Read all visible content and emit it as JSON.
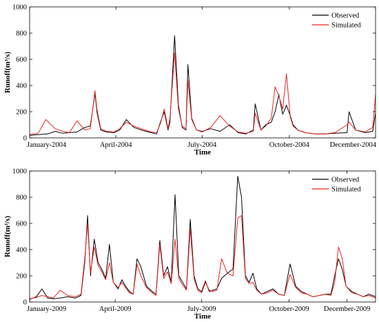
{
  "figure": {
    "panels": [
      {
        "xlabel": "Time",
        "ylabel": "Runoff(m³/s)",
        "legend": [
          "Observed",
          "Simulated"
        ]
      },
      {
        "xlabel": "Time",
        "ylabel": "Runoff(m³/s)",
        "legend": [
          "Observed",
          "Simulated"
        ]
      }
    ]
  },
  "chart_data": [
    {
      "type": "line",
      "title": "",
      "xlabel": "Time",
      "ylabel": "Runoff(m³/s)",
      "ylim": [
        0,
        1000
      ],
      "yticks": [
        0,
        200,
        400,
        600,
        800,
        1000
      ],
      "xlim": [
        "2004-01-01",
        "2004-12-31"
      ],
      "xticks": [
        {
          "date": "2004-01-01",
          "label": "January-2004"
        },
        {
          "date": "2004-04-01",
          "label": "April-2004"
        },
        {
          "date": "2004-07-01",
          "label": "July-2004"
        },
        {
          "date": "2004-10-01",
          "label": "October-2004"
        },
        {
          "date": "2004-12-31",
          "label": "December-2004"
        }
      ],
      "legend_position": "top-right",
      "grid": false,
      "colors": {
        "Observed": "#000000",
        "Simulated": "#e8231f"
      },
      "series": [
        {
          "name": "Observed",
          "x": [
            "2004-01-01",
            "2004-01-10",
            "2004-01-20",
            "2004-01-28",
            "2004-02-05",
            "2004-02-12",
            "2004-02-20",
            "2004-02-28",
            "2004-03-05",
            "2004-03-10",
            "2004-03-12",
            "2004-03-16",
            "2004-03-22",
            "2004-03-30",
            "2004-04-05",
            "2004-04-12",
            "2004-04-20",
            "2004-04-28",
            "2004-05-08",
            "2004-05-14",
            "2004-05-18",
            "2004-05-22",
            "2004-05-26",
            "2004-05-28",
            "2004-06-02",
            "2004-06-06",
            "2004-06-10",
            "2004-06-14",
            "2004-06-16",
            "2004-06-20",
            "2004-06-25",
            "2004-07-01",
            "2004-07-10",
            "2004-07-20",
            "2004-07-30",
            "2004-08-08",
            "2004-08-16",
            "2004-08-24",
            "2004-08-26",
            "2004-09-01",
            "2004-09-06",
            "2004-09-12",
            "2004-09-16",
            "2004-09-20",
            "2004-09-24",
            "2004-09-28",
            "2004-10-02",
            "2004-10-05",
            "2004-10-10",
            "2004-10-18",
            "2004-10-28",
            "2004-11-08",
            "2004-11-18",
            "2004-12-01",
            "2004-12-03",
            "2004-12-10",
            "2004-12-20",
            "2004-12-28",
            "2004-12-31"
          ],
          "values": [
            20,
            25,
            30,
            50,
            35,
            40,
            45,
            80,
            90,
            340,
            200,
            60,
            45,
            40,
            60,
            140,
            80,
            60,
            40,
            30,
            120,
            200,
            60,
            120,
            780,
            250,
            80,
            60,
            560,
            150,
            60,
            50,
            70,
            50,
            100,
            40,
            30,
            60,
            260,
            60,
            100,
            120,
            200,
            330,
            180,
            250,
            170,
            100,
            60,
            40,
            30,
            30,
            35,
            40,
            200,
            60,
            40,
            50,
            190
          ]
        },
        {
          "name": "Simulated",
          "x": [
            "2004-01-01",
            "2004-01-10",
            "2004-01-18",
            "2004-01-28",
            "2004-02-05",
            "2004-02-12",
            "2004-02-20",
            "2004-02-28",
            "2004-03-05",
            "2004-03-10",
            "2004-03-12",
            "2004-03-16",
            "2004-03-22",
            "2004-03-30",
            "2004-04-05",
            "2004-04-12",
            "2004-04-20",
            "2004-04-28",
            "2004-05-08",
            "2004-05-14",
            "2004-05-18",
            "2004-05-22",
            "2004-05-26",
            "2004-05-28",
            "2004-06-02",
            "2004-06-06",
            "2004-06-10",
            "2004-06-14",
            "2004-06-16",
            "2004-06-20",
            "2004-06-25",
            "2004-07-01",
            "2004-07-10",
            "2004-07-20",
            "2004-07-30",
            "2004-08-08",
            "2004-08-16",
            "2004-08-24",
            "2004-08-26",
            "2004-09-01",
            "2004-09-06",
            "2004-09-12",
            "2004-09-16",
            "2004-09-20",
            "2004-09-24",
            "2004-09-28",
            "2004-10-02",
            "2004-10-05",
            "2004-10-10",
            "2004-10-18",
            "2004-10-28",
            "2004-11-08",
            "2004-11-18",
            "2004-12-01",
            "2004-12-03",
            "2004-12-10",
            "2004-12-20",
            "2004-12-28",
            "2004-12-31"
          ],
          "values": [
            25,
            35,
            140,
            70,
            50,
            40,
            130,
            60,
            70,
            360,
            220,
            70,
            50,
            45,
            70,
            120,
            90,
            70,
            45,
            40,
            110,
            220,
            70,
            150,
            650,
            220,
            90,
            70,
            440,
            140,
            60,
            45,
            80,
            170,
            90,
            45,
            35,
            50,
            190,
            60,
            90,
            150,
            390,
            320,
            220,
            490,
            160,
            90,
            60,
            40,
            30,
            30,
            40,
            100,
            120,
            60,
            45,
            80,
            330
          ]
        }
      ]
    },
    {
      "type": "line",
      "title": "",
      "xlabel": "Time",
      "ylabel": "Runoff(m³/s)",
      "ylim": [
        0,
        1000
      ],
      "yticks": [
        0,
        200,
        400,
        600,
        800,
        1000
      ],
      "xlim": [
        "2009-01-01",
        "2009-12-31"
      ],
      "xticks": [
        {
          "date": "2009-01-01",
          "label": "January-2009"
        },
        {
          "date": "2009-04-01",
          "label": "April-2009"
        },
        {
          "date": "2009-07-01",
          "label": "July-2009"
        },
        {
          "date": "2009-10-01",
          "label": "October-2009"
        },
        {
          "date": "2009-12-01",
          "label": "December-2009"
        }
      ],
      "legend_position": "top-right",
      "grid": false,
      "colors": {
        "Observed": "#000000",
        "Simulated": "#e8231f"
      },
      "series": [
        {
          "name": "Observed",
          "x": [
            "2009-01-01",
            "2009-01-08",
            "2009-01-14",
            "2009-01-20",
            "2009-01-26",
            "2009-02-02",
            "2009-02-10",
            "2009-02-18",
            "2009-02-24",
            "2009-02-28",
            "2009-03-03",
            "2009-03-06",
            "2009-03-10",
            "2009-03-14",
            "2009-03-18",
            "2009-03-22",
            "2009-03-26",
            "2009-03-30",
            "2009-04-04",
            "2009-04-08",
            "2009-04-12",
            "2009-04-16",
            "2009-04-20",
            "2009-04-24",
            "2009-04-28",
            "2009-05-04",
            "2009-05-10",
            "2009-05-14",
            "2009-05-18",
            "2009-05-22",
            "2009-05-26",
            "2009-05-30",
            "2009-06-03",
            "2009-06-07",
            "2009-06-11",
            "2009-06-15",
            "2009-06-19",
            "2009-06-23",
            "2009-06-27",
            "2009-07-01",
            "2009-07-05",
            "2009-07-09",
            "2009-07-13",
            "2009-07-17",
            "2009-07-22",
            "2009-07-28",
            "2009-08-03",
            "2009-08-08",
            "2009-08-12",
            "2009-08-16",
            "2009-08-20",
            "2009-08-24",
            "2009-08-28",
            "2009-09-02",
            "2009-09-08",
            "2009-09-14",
            "2009-09-20",
            "2009-09-26",
            "2009-10-02",
            "2009-10-08",
            "2009-10-14",
            "2009-10-20",
            "2009-10-26",
            "2009-11-02",
            "2009-11-08",
            "2009-11-14",
            "2009-11-18",
            "2009-11-22",
            "2009-11-26",
            "2009-11-30",
            "2009-12-06",
            "2009-12-12",
            "2009-12-18",
            "2009-12-24",
            "2009-12-31"
          ],
          "values": [
            20,
            40,
            100,
            30,
            25,
            30,
            40,
            30,
            50,
            300,
            660,
            200,
            480,
            300,
            250,
            180,
            440,
            150,
            100,
            170,
            120,
            80,
            60,
            330,
            270,
            120,
            80,
            60,
            470,
            200,
            270,
            150,
            820,
            200,
            150,
            100,
            630,
            200,
            100,
            80,
            160,
            80,
            90,
            100,
            180,
            220,
            250,
            960,
            800,
            200,
            150,
            220,
            100,
            60,
            80,
            100,
            60,
            50,
            290,
            120,
            80,
            60,
            40,
            50,
            60,
            60,
            200,
            330,
            250,
            120,
            80,
            60,
            40,
            60,
            40
          ]
        },
        {
          "name": "Simulated",
          "x": [
            "2009-01-01",
            "2009-01-08",
            "2009-01-14",
            "2009-01-20",
            "2009-01-26",
            "2009-02-02",
            "2009-02-10",
            "2009-02-18",
            "2009-02-24",
            "2009-02-28",
            "2009-03-03",
            "2009-03-06",
            "2009-03-10",
            "2009-03-14",
            "2009-03-18",
            "2009-03-22",
            "2009-03-26",
            "2009-03-30",
            "2009-04-04",
            "2009-04-08",
            "2009-04-12",
            "2009-04-16",
            "2009-04-20",
            "2009-04-24",
            "2009-04-28",
            "2009-05-04",
            "2009-05-10",
            "2009-05-14",
            "2009-05-18",
            "2009-05-22",
            "2009-05-26",
            "2009-05-30",
            "2009-06-03",
            "2009-06-07",
            "2009-06-11",
            "2009-06-15",
            "2009-06-19",
            "2009-06-23",
            "2009-06-27",
            "2009-07-01",
            "2009-07-05",
            "2009-07-09",
            "2009-07-13",
            "2009-07-17",
            "2009-07-22",
            "2009-07-28",
            "2009-08-03",
            "2009-08-08",
            "2009-08-12",
            "2009-08-16",
            "2009-08-20",
            "2009-08-24",
            "2009-08-28",
            "2009-09-02",
            "2009-09-08",
            "2009-09-14",
            "2009-09-20",
            "2009-09-26",
            "2009-10-02",
            "2009-10-08",
            "2009-10-14",
            "2009-10-20",
            "2009-10-26",
            "2009-11-02",
            "2009-11-08",
            "2009-11-14",
            "2009-11-18",
            "2009-11-22",
            "2009-11-26",
            "2009-11-30",
            "2009-12-06",
            "2009-12-12",
            "2009-12-18",
            "2009-12-24",
            "2009-12-31"
          ],
          "values": [
            25,
            35,
            50,
            40,
            30,
            90,
            50,
            40,
            60,
            330,
            600,
            220,
            420,
            280,
            230,
            170,
            300,
            150,
            110,
            150,
            110,
            70,
            60,
            290,
            200,
            110,
            70,
            50,
            440,
            180,
            230,
            140,
            480,
            180,
            130,
            90,
            560,
            180,
            90,
            70,
            150,
            90,
            80,
            90,
            330,
            220,
            200,
            640,
            660,
            180,
            140,
            150,
            90,
            60,
            70,
            90,
            60,
            50,
            210,
            110,
            70,
            60,
            40,
            50,
            60,
            50,
            150,
            420,
            330,
            120,
            70,
            60,
            40,
            50,
            30
          ]
        }
      ]
    }
  ]
}
